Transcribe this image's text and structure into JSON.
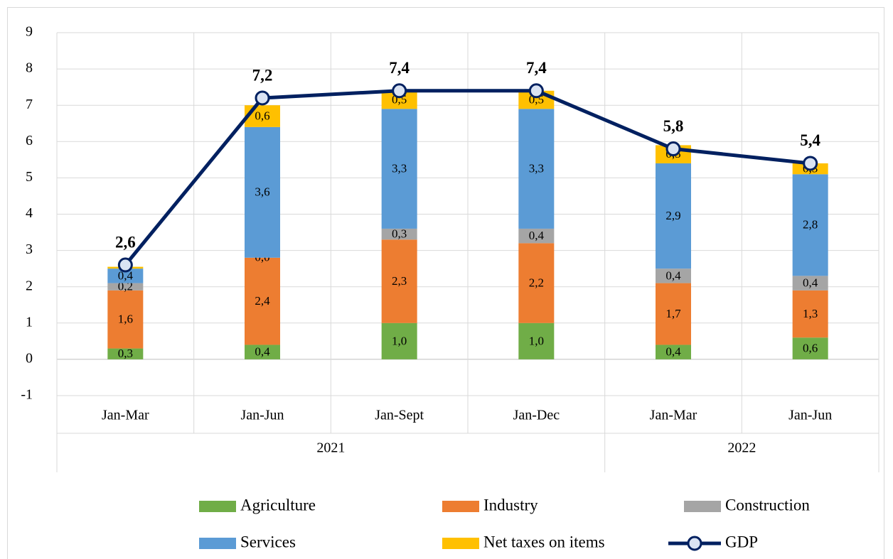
{
  "chart_data": {
    "type": "bar",
    "stacked": true,
    "categories": [
      "Jan-Mar",
      "Jan-Jun",
      "Jan-Sept",
      "Jan-Dec",
      "Jan-Mar",
      "Jan-Jun"
    ],
    "groups": [
      {
        "label": "2021",
        "span": 4
      },
      {
        "label": "2022",
        "span": 2
      }
    ],
    "ylim": [
      -1,
      9
    ],
    "yticks": [
      -1,
      0,
      1,
      2,
      3,
      4,
      5,
      6,
      7,
      8,
      9
    ],
    "grid": true,
    "legend_position": "bottom",
    "series": [
      {
        "name": "Agriculture",
        "color": "#70ad47",
        "values": [
          0.3,
          0.4,
          1.0,
          1.0,
          0.4,
          0.6
        ],
        "labels": [
          "0,3",
          "0,4",
          "1,0",
          "1,0",
          "0,4",
          "0,6"
        ]
      },
      {
        "name": "Industry",
        "color": "#ed7d31",
        "values": [
          1.6,
          2.4,
          2.3,
          2.2,
          1.7,
          1.3
        ],
        "labels": [
          "1,6",
          "2,4",
          "2,3",
          "2,2",
          "1,7",
          "1,3"
        ]
      },
      {
        "name": "Construction",
        "color": "#a5a5a5",
        "values": [
          0.2,
          0.0,
          0.3,
          0.4,
          0.4,
          0.4
        ],
        "labels": [
          "0,2",
          "0,0",
          "0,3",
          "0,4",
          "0,4",
          "0,4"
        ]
      },
      {
        "name": "Services",
        "color": "#5b9bd5",
        "values": [
          0.4,
          3.6,
          3.3,
          3.3,
          2.9,
          2.8
        ],
        "labels": [
          "0,4",
          "3,6",
          "3,3",
          "3,3",
          "2,9",
          "2,8"
        ]
      },
      {
        "name": "Net taxes on items",
        "color": "#ffc000",
        "values": [
          0.05,
          0.6,
          0.5,
          0.5,
          0.5,
          0.3
        ],
        "labels": [
          "",
          "0,6",
          "0,5",
          "0,5",
          "0,5",
          "0,3"
        ]
      }
    ],
    "line": {
      "name": "GDP",
      "color": "#002060",
      "values": [
        2.6,
        7.2,
        7.4,
        7.4,
        5.8,
        5.4
      ],
      "labels": [
        "2,6",
        "7,2",
        "7,4",
        "7,4",
        "5,8",
        "5,4"
      ]
    },
    "legend": [
      {
        "name": "Agriculture",
        "kind": "box",
        "color": "#70ad47"
      },
      {
        "name": "Industry",
        "kind": "box",
        "color": "#ed7d31"
      },
      {
        "name": "Construction",
        "kind": "box",
        "color": "#a5a5a5"
      },
      {
        "name": "Services",
        "kind": "box",
        "color": "#5b9bd5"
      },
      {
        "name": "Net taxes on items",
        "kind": "box",
        "color": "#ffc000"
      },
      {
        "name": "GDP",
        "kind": "line",
        "color": "#002060"
      }
    ]
  }
}
